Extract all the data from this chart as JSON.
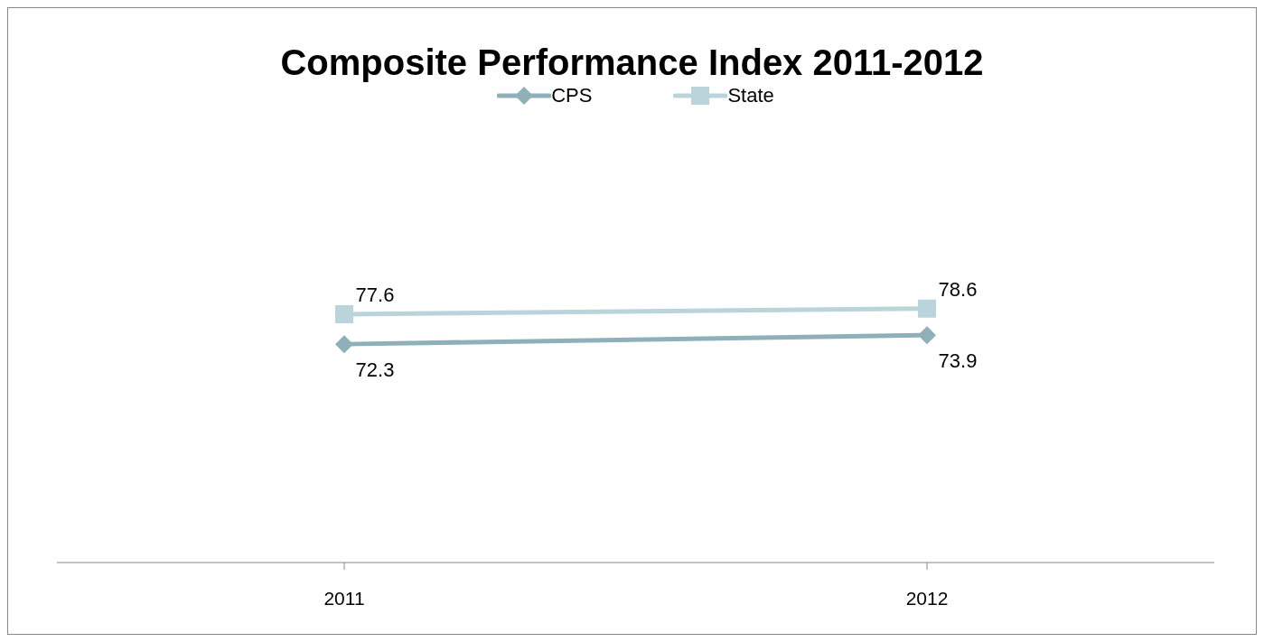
{
  "chart_data": {
    "type": "line",
    "title": "Composite Performance Index 2011-2012",
    "categories": [
      "2011",
      "2012"
    ],
    "series": [
      {
        "name": "CPS",
        "color": "#8fb0b9",
        "values": [
          72.3,
          73.9
        ],
        "marker": "diamond"
      },
      {
        "name": "State",
        "color": "#bbd3db",
        "values": [
          77.6,
          78.6
        ],
        "marker": "square"
      }
    ],
    "data_labels": true,
    "legend": "top",
    "tick_labels": "x"
  }
}
